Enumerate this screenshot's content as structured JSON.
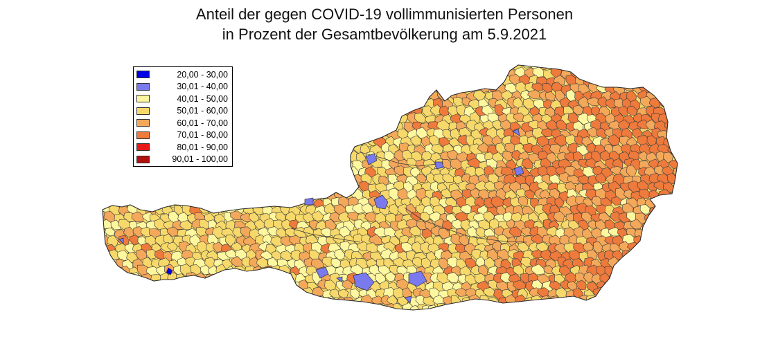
{
  "title": {
    "line1": "Anteil der gegen COVID-19 vollimmunisierten Personen",
    "line2": "in Prozent der Gesamtbevölkerung am 5.9.2021"
  },
  "legend": {
    "items": [
      {
        "label": "20,00 - 30,00",
        "color": "#0000e6"
      },
      {
        "label": "30,01 - 40,00",
        "color": "#7a7aee"
      },
      {
        "label": "40,01 - 50,00",
        "color": "#fdf7a0"
      },
      {
        "label": "50,01 - 60,00",
        "color": "#f6d96a"
      },
      {
        "label": "60,01 - 70,00",
        "color": "#f4a85a"
      },
      {
        "label": "70,01 - 80,00",
        "color": "#ee7a3c"
      },
      {
        "label": "80,01 - 90,00",
        "color": "#e61a1a"
      },
      {
        "label": "90,01 - 100,00",
        "color": "#b30f0f"
      }
    ]
  },
  "map": {
    "region": "Austria",
    "fill_classes": [
      "40,01 - 50,00",
      "50,01 - 60,00",
      "60,01 - 70,00",
      "70,01 - 80,00"
    ],
    "highlight_classes": [
      "20,00 - 30,00",
      "30,01 - 40,00"
    ],
    "border_color": "#3a3a3a"
  }
}
